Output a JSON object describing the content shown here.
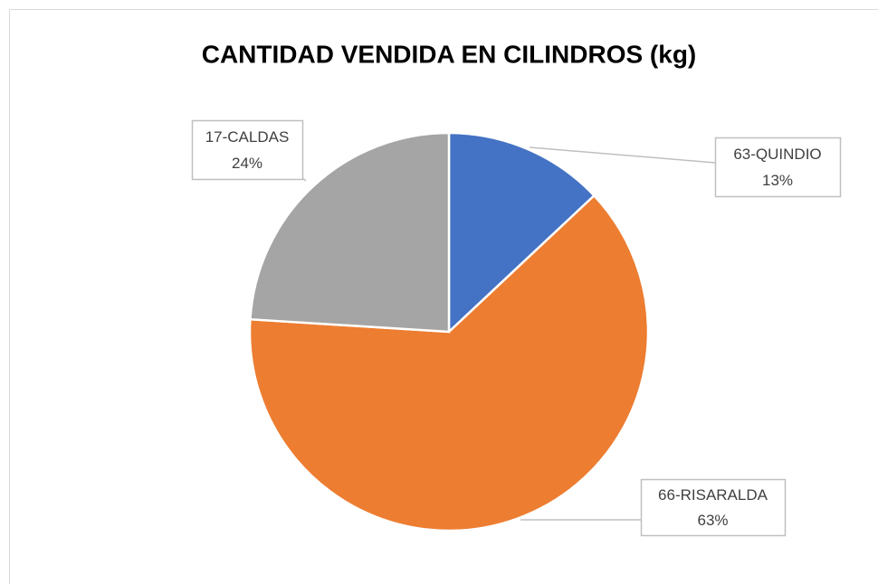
{
  "chart_data": {
    "type": "pie",
    "title": "CANTIDAD VENDIDA EN CILINDROS (kg)",
    "categories": [
      "63-QUINDIO",
      "66-RISARALDA",
      "17-CALDAS"
    ],
    "values": [
      13,
      63,
      24
    ],
    "value_labels": [
      "13%",
      "63%",
      "24%"
    ],
    "colors": [
      "#4472c4",
      "#ed7d31",
      "#a5a5a5"
    ]
  }
}
